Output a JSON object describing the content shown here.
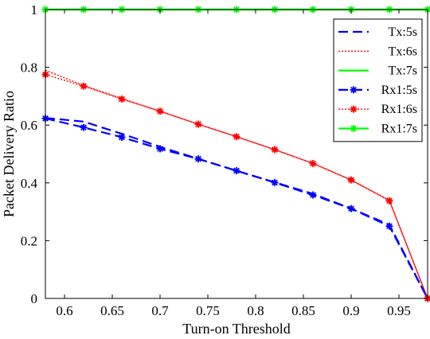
{
  "chart_data": {
    "type": "line",
    "title": "",
    "xlabel": "Turn-on Threshold",
    "ylabel": "Packet Delivery Ratio",
    "xlim": [
      0.58,
      0.98
    ],
    "ylim": [
      0,
      1
    ],
    "x_ticks": [
      "0.6",
      "0.65",
      "0.7",
      "0.75",
      "0.8",
      "0.85",
      "0.9",
      "0.95"
    ],
    "y_ticks": [
      "0",
      "0.2",
      "0.4",
      "0.6",
      "0.8",
      "1"
    ],
    "grid": false,
    "legend_position": "top-right",
    "series": [
      {
        "name": "Tx:5s",
        "color": "#0000ff",
        "dash": "dashed",
        "marker": "none",
        "x": [
          0.58,
          0.62,
          0.66,
          0.7,
          0.74,
          0.78,
          0.82,
          0.86,
          0.9,
          0.94,
          0.98
        ],
        "y": [
          0.625,
          0.612,
          0.57,
          0.525,
          0.483,
          0.442,
          0.402,
          0.362,
          0.311,
          0.255,
          0.0
        ]
      },
      {
        "name": "Tx:6s",
        "color": "#ff0000",
        "dash": "dotted",
        "marker": "none",
        "x": [
          0.58,
          0.62,
          0.66,
          0.7,
          0.74,
          0.78,
          0.82,
          0.86,
          0.9,
          0.94,
          0.98
        ],
        "y": [
          0.79,
          0.737,
          0.692,
          0.648,
          0.603,
          0.56,
          0.515,
          0.468,
          0.41,
          0.34,
          0.0
        ]
      },
      {
        "name": "Tx:7s",
        "color": "#00ff00",
        "dash": "solid",
        "marker": "none",
        "x": [
          0.58,
          0.62,
          0.66,
          0.7,
          0.74,
          0.78,
          0.82,
          0.86,
          0.9,
          0.94,
          0.98
        ],
        "y": [
          1,
          1,
          1,
          1,
          1,
          1,
          1,
          1,
          1,
          1,
          1
        ]
      },
      {
        "name": "Rx1:5s",
        "color": "#0000ff",
        "dash": "dashed",
        "marker": "asterisk",
        "x": [
          0.58,
          0.62,
          0.66,
          0.7,
          0.74,
          0.78,
          0.82,
          0.86,
          0.9,
          0.94,
          0.98
        ],
        "y": [
          0.623,
          0.592,
          0.558,
          0.518,
          0.483,
          0.442,
          0.401,
          0.358,
          0.311,
          0.25,
          0.0
        ]
      },
      {
        "name": "Rx1:6s",
        "color": "#ff0000",
        "dash": "dotted",
        "marker": "asterisk",
        "x": [
          0.58,
          0.62,
          0.66,
          0.7,
          0.74,
          0.78,
          0.82,
          0.86,
          0.9,
          0.94,
          0.98
        ],
        "y": [
          0.775,
          0.735,
          0.69,
          0.648,
          0.603,
          0.56,
          0.515,
          0.467,
          0.41,
          0.338,
          0.0
        ]
      },
      {
        "name": "Rx1:7s",
        "color": "#00ff00",
        "dash": "solid",
        "marker": "asterisk",
        "x": [
          0.58,
          0.62,
          0.66,
          0.7,
          0.74,
          0.78,
          0.82,
          0.86,
          0.9,
          0.94,
          0.98
        ],
        "y": [
          1,
          1,
          1,
          1,
          1,
          1,
          1,
          1,
          1,
          1,
          1
        ]
      }
    ]
  }
}
